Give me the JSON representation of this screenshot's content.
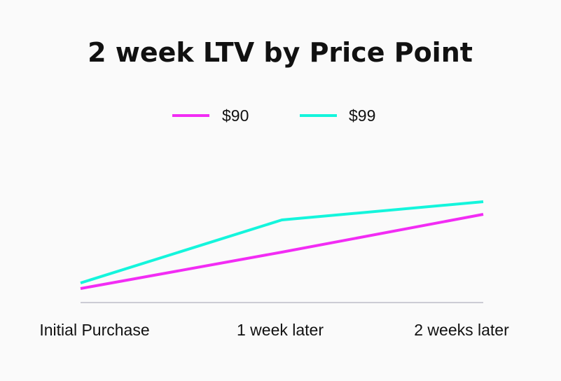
{
  "chart_data": {
    "type": "line",
    "title": "2 week LTV by Price Point",
    "xlabel": "",
    "ylabel": "",
    "categories": [
      "Initial Purchase",
      "1 week later",
      "2 weeks later"
    ],
    "series": [
      {
        "name": "$90",
        "color": "#f22cf4",
        "values": [
          22,
          48,
          75
        ]
      },
      {
        "name": "$99",
        "color": "#14f5dc",
        "values": [
          26,
          71,
          84
        ]
      }
    ],
    "ylim": [
      12,
      112
    ],
    "grid": false,
    "legend": "top-center"
  }
}
